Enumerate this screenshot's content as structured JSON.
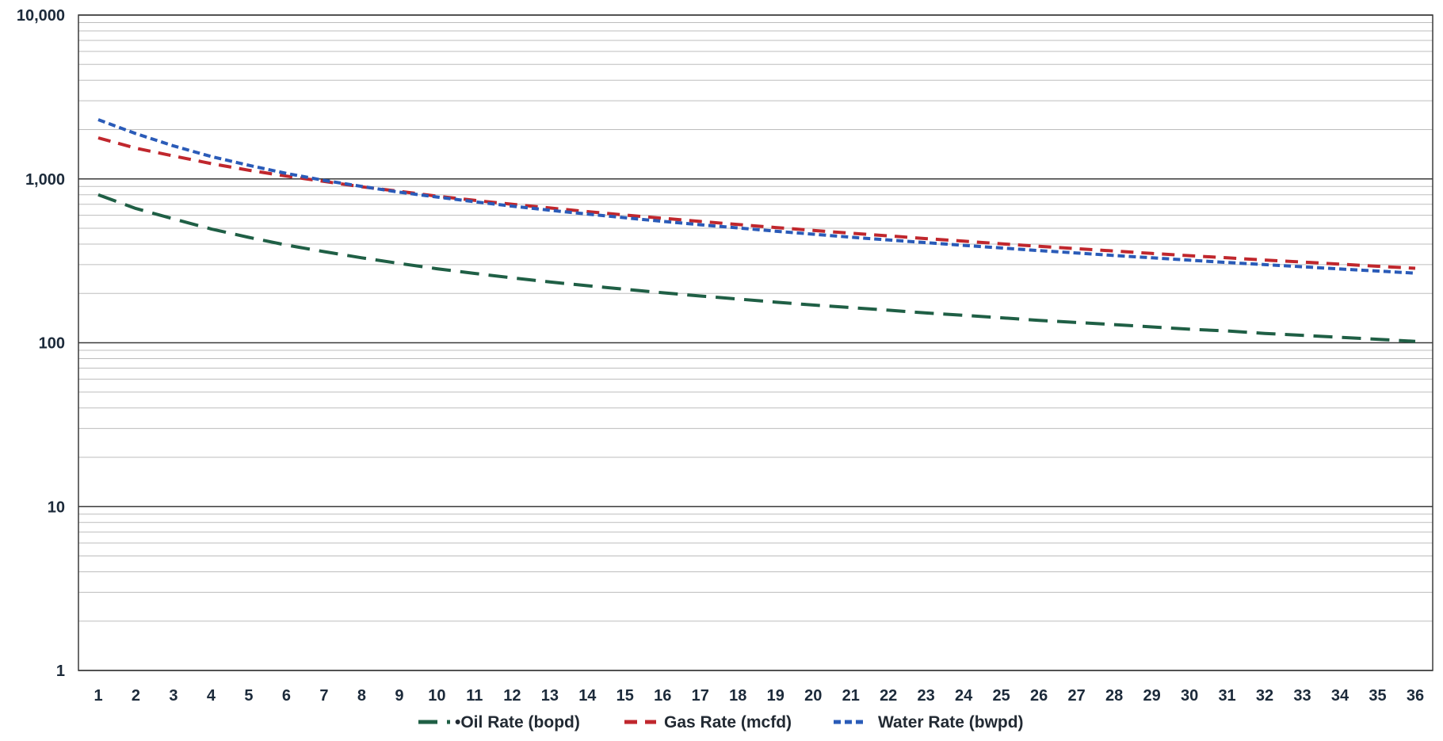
{
  "chart_data": {
    "type": "line",
    "title": "",
    "xlabel": "",
    "ylabel": "",
    "y_scale": "log",
    "ylim": [
      1,
      10000
    ],
    "grid": true,
    "legend_position": "bottom",
    "x": [
      1,
      2,
      3,
      4,
      5,
      6,
      7,
      8,
      9,
      10,
      11,
      12,
      13,
      14,
      15,
      16,
      17,
      18,
      19,
      20,
      21,
      22,
      23,
      24,
      25,
      26,
      27,
      28,
      29,
      30,
      31,
      32,
      33,
      34,
      35,
      36
    ],
    "x_tick_labels": [
      "1",
      "2",
      "3",
      "4",
      "5",
      "6",
      "7",
      "8",
      "9",
      "10",
      "11",
      "12",
      "13",
      "14",
      "15",
      "16",
      "17",
      "18",
      "19",
      "20",
      "21",
      "22",
      "23",
      "24",
      "25",
      "26",
      "27",
      "28",
      "29",
      "30",
      "31",
      "32",
      "33",
      "34",
      "35",
      "36"
    ],
    "y_tick_values": [
      1,
      10,
      100,
      1000,
      10000
    ],
    "y_tick_labels": [
      "1",
      "10",
      "100",
      "1,000",
      "10,000"
    ],
    "series": [
      {
        "name": "Oil Rate (bopd)",
        "legend_label": "•Oil Rate (bopd)",
        "color": "#1f5f45",
        "style": "long-dash",
        "values": [
          800,
          660,
          570,
          495,
          440,
          395,
          360,
          330,
          305,
          283,
          265,
          249,
          235,
          223,
          212,
          202,
          193,
          185,
          177,
          170,
          164,
          158,
          152,
          147,
          142,
          137,
          133,
          129,
          125,
          121,
          118,
          114,
          111,
          108,
          105,
          102
        ]
      },
      {
        "name": "Gas Rate (mcfd)",
        "legend_label": "Gas Rate (mcfd)",
        "color": "#c0272d",
        "style": "dash",
        "values": [
          1780,
          1540,
          1380,
          1240,
          1130,
          1040,
          965,
          895,
          840,
          785,
          740,
          700,
          665,
          632,
          602,
          575,
          550,
          527,
          505,
          485,
          466,
          449,
          432,
          417,
          402,
          388,
          375,
          363,
          351,
          340,
          330,
          320,
          311,
          302,
          293,
          285
        ]
      },
      {
        "name": "Water Rate (bwpd)",
        "legend_label": "Water Rate (bwpd)",
        "color": "#2a5bb8",
        "style": "short-dash",
        "values": [
          2300,
          1890,
          1590,
          1370,
          1210,
          1080,
          980,
          900,
          830,
          775,
          725,
          682,
          644,
          610,
          579,
          551,
          525,
          502,
          480,
          460,
          441,
          424,
          408,
          393,
          379,
          365,
          353,
          341,
          330,
          319,
          309,
          300,
          291,
          282,
          274,
          266
        ]
      }
    ]
  }
}
